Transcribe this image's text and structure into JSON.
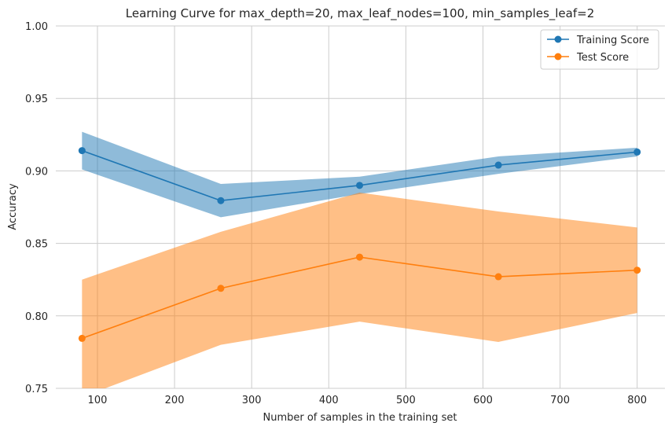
{
  "chart_data": {
    "type": "line",
    "title": "Learning Curve for max_depth=20, max_leaf_nodes=100, min_samples_leaf=2",
    "xlabel": "Number of samples in the training set",
    "ylabel": "Accuracy",
    "xlim": [
      46,
      836
    ],
    "ylim": [
      0.75,
      1.0
    ],
    "xticks": [
      100,
      200,
      300,
      400,
      500,
      600,
      700,
      800
    ],
    "yticks": [
      0.75,
      0.8,
      0.85,
      0.9,
      0.95,
      1.0
    ],
    "xtick_labels": [
      "100",
      "200",
      "300",
      "400",
      "500",
      "600",
      "700",
      "800"
    ],
    "ytick_labels": [
      "0.75",
      "0.80",
      "0.85",
      "0.90",
      "0.95",
      "1.00"
    ],
    "grid": true,
    "legend_position": "top-right",
    "x": [
      80,
      260,
      440,
      620,
      800
    ],
    "series": [
      {
        "name": "Training Score",
        "color": "#1f77b4",
        "band_color": "#1f77b4",
        "values": [
          0.914,
          0.8795,
          0.89,
          0.904,
          0.913
        ],
        "band_lower": [
          0.901,
          0.868,
          0.884,
          0.898,
          0.91
        ],
        "band_upper": [
          0.927,
          0.891,
          0.896,
          0.91,
          0.916
        ]
      },
      {
        "name": "Test Score",
        "color": "#ff7f0e",
        "band_color": "#ff7f0e",
        "values": [
          0.7845,
          0.819,
          0.8405,
          0.827,
          0.8315
        ],
        "band_lower": [
          0.744,
          0.78,
          0.796,
          0.782,
          0.802
        ],
        "band_upper": [
          0.825,
          0.858,
          0.885,
          0.872,
          0.861
        ]
      }
    ]
  }
}
